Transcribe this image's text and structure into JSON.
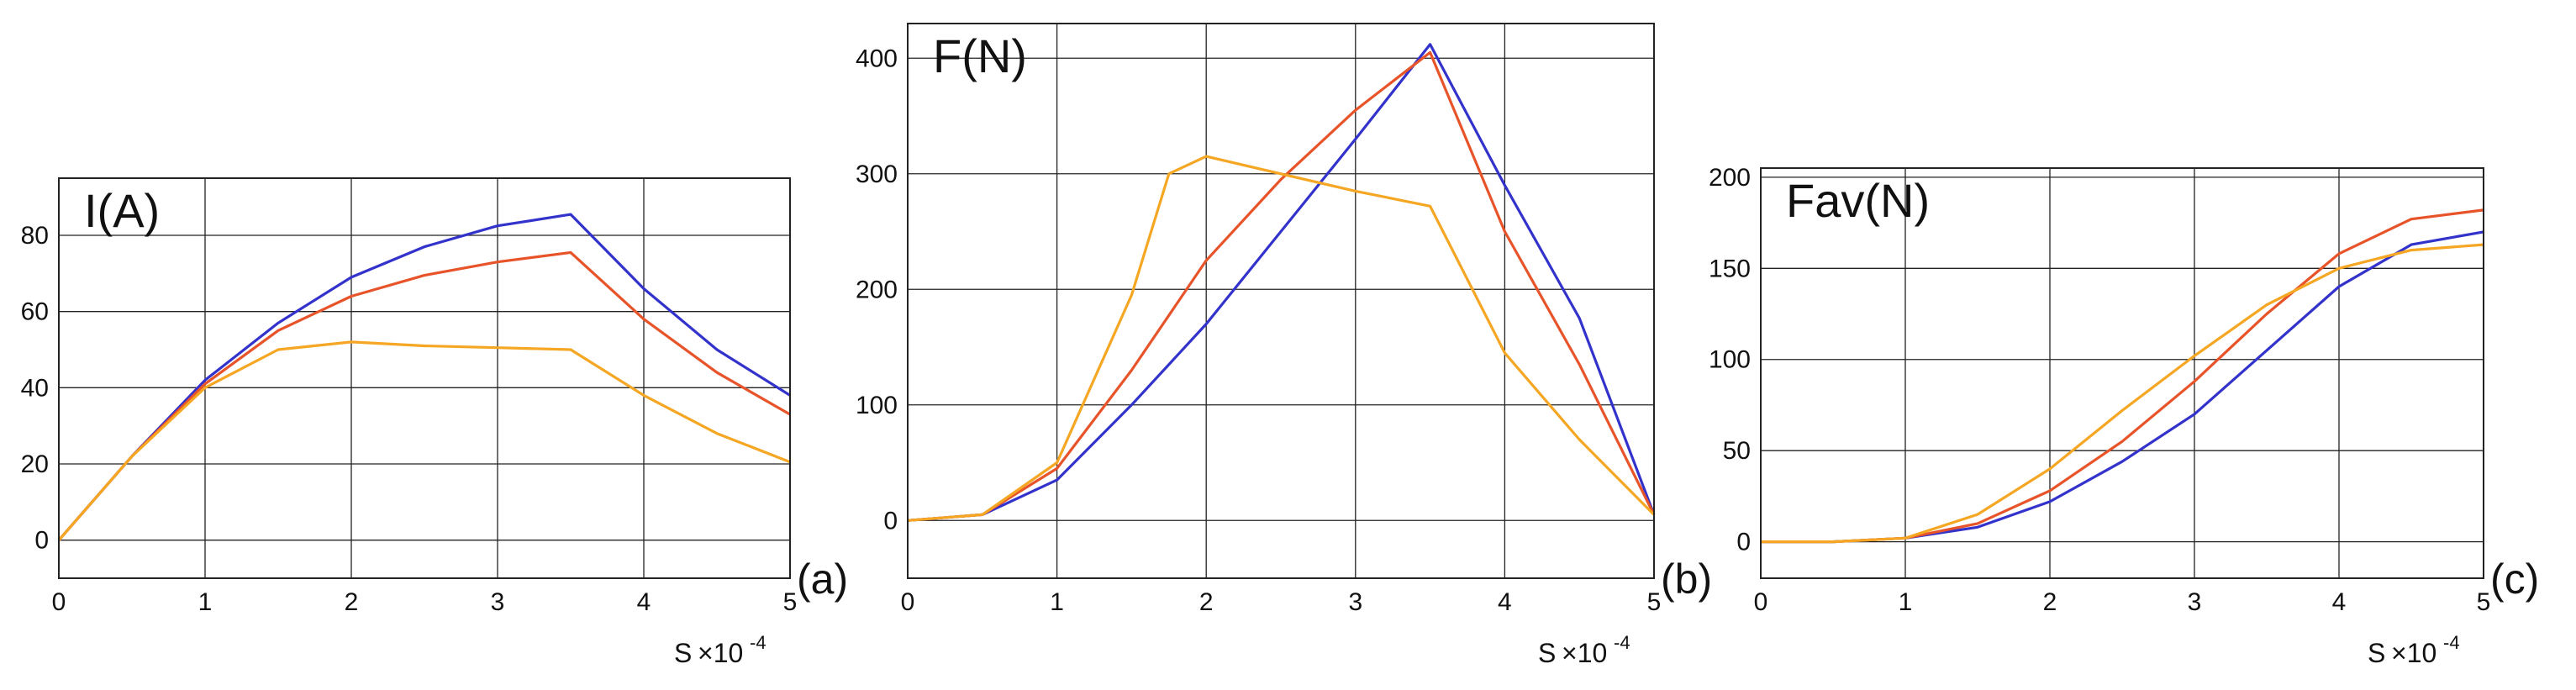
{
  "chart_data": [
    {
      "type": "line",
      "title": "",
      "ylabel": "I(A)",
      "panel_label": "(a)",
      "xlabel": "S",
      "x_multiplier": "×10",
      "x_exponent": "-4",
      "xlim": [
        0,
        5
      ],
      "ylim": [
        -10,
        95
      ],
      "xticks": [
        0,
        1,
        2,
        3,
        4,
        5
      ],
      "yticks": [
        0,
        20,
        40,
        60,
        80
      ],
      "grid": true,
      "series": [
        {
          "color": "#3333cc",
          "x": [
            0,
            0.5,
            1,
            1.5,
            2,
            2.5,
            3,
            3.5,
            4,
            4.5,
            5
          ],
          "y": [
            0,
            22,
            42,
            57,
            69,
            77,
            82.5,
            85.5,
            66,
            50,
            38
          ]
        },
        {
          "color": "#e8542a",
          "x": [
            0,
            0.5,
            1,
            1.5,
            2,
            2.5,
            3,
            3.5,
            4,
            4.5,
            5
          ],
          "y": [
            0,
            22,
            41,
            55,
            64,
            69.5,
            73,
            75.5,
            58,
            44,
            33
          ]
        },
        {
          "color": "#f5a623",
          "x": [
            0,
            0.5,
            1,
            1.5,
            2,
            2.5,
            3,
            3.5,
            4,
            4.5,
            5
          ],
          "y": [
            0,
            22,
            40,
            50,
            52,
            51,
            50.5,
            50,
            38,
            28,
            20.5
          ]
        }
      ]
    },
    {
      "type": "line",
      "title": "",
      "ylabel": "F(N)",
      "panel_label": "(b)",
      "xlabel": "S",
      "x_multiplier": "×10",
      "x_exponent": "-4",
      "xlim": [
        0,
        5
      ],
      "ylim": [
        -50,
        430
      ],
      "xticks": [
        0,
        1,
        2,
        3,
        4,
        5
      ],
      "yticks": [
        0,
        100,
        200,
        300,
        400
      ],
      "grid": true,
      "series": [
        {
          "color": "#3333cc",
          "x": [
            0,
            0.5,
            1,
            1.5,
            2,
            2.5,
            3,
            3.5,
            4,
            4.5,
            5
          ],
          "y": [
            0,
            5,
            35,
            100,
            170,
            250,
            330,
            412,
            290,
            175,
            5
          ]
        },
        {
          "color": "#e8542a",
          "x": [
            0,
            0.5,
            1,
            1.5,
            2,
            2.5,
            3,
            3.5,
            4,
            4.5,
            5
          ],
          "y": [
            0,
            5,
            45,
            130,
            225,
            295,
            355,
            405,
            250,
            135,
            5
          ]
        },
        {
          "color": "#f5a623",
          "x": [
            0,
            0.5,
            1,
            1.5,
            1.75,
            2,
            2.5,
            3,
            3.5,
            4,
            4.5,
            5
          ],
          "y": [
            0,
            5,
            50,
            195,
            300,
            315,
            300,
            285,
            272,
            145,
            70,
            5
          ]
        }
      ]
    },
    {
      "type": "line",
      "title": "",
      "ylabel": "Fav(N)",
      "panel_label": "(c)",
      "xlabel": "S",
      "x_multiplier": "×10",
      "x_exponent": "-4",
      "xlim": [
        0,
        5
      ],
      "ylim": [
        -20,
        205
      ],
      "xticks": [
        0,
        1,
        2,
        3,
        4,
        5
      ],
      "yticks": [
        0,
        50,
        100,
        150,
        200
      ],
      "grid": true,
      "series": [
        {
          "color": "#3333cc",
          "x": [
            0,
            0.5,
            1,
            1.5,
            2,
            2.5,
            3,
            3.5,
            4,
            4.5,
            5
          ],
          "y": [
            0,
            0,
            2,
            8,
            22,
            44,
            70,
            105,
            140,
            163,
            170
          ]
        },
        {
          "color": "#e8542a",
          "x": [
            0,
            0.5,
            1,
            1.5,
            2,
            2.5,
            3,
            3.5,
            4,
            4.5,
            5
          ],
          "y": [
            0,
            0,
            2,
            10,
            28,
            55,
            88,
            125,
            158,
            177,
            182
          ]
        },
        {
          "color": "#f5a623",
          "x": [
            0,
            0.5,
            1,
            1.5,
            2,
            2.5,
            3,
            3.5,
            4,
            4.5,
            5
          ],
          "y": [
            0,
            0,
            2,
            15,
            40,
            72,
            102,
            130,
            150,
            160,
            163
          ]
        }
      ]
    }
  ]
}
